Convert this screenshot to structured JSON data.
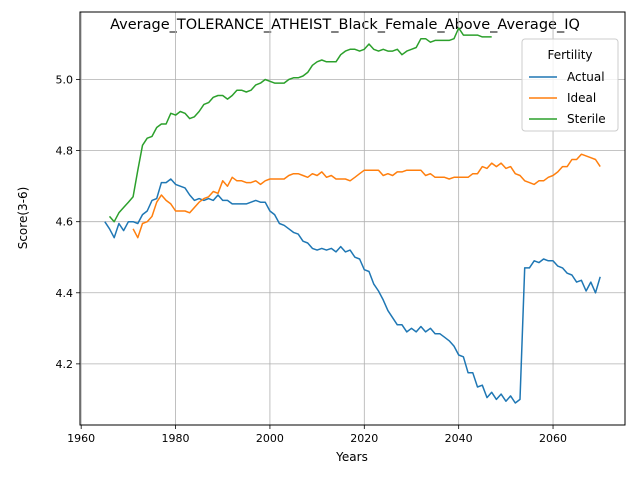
{
  "chart_data": {
    "type": "line",
    "title": "Average_TOLERANCE_ATHEIST_Black_Female_Above_Average_IQ",
    "xlabel": "Years",
    "ylabel": "Score(3-6)",
    "xlim": [
      1959.75,
      2075.25
    ],
    "ylim": [
      4.028,
      5.19
    ],
    "xticks": [
      1960,
      1980,
      2000,
      2020,
      2040,
      2060
    ],
    "yticks": [
      4.2,
      4.4,
      4.6,
      4.8,
      5.0
    ],
    "xtick_labels": [
      "1960",
      "1980",
      "2000",
      "2020",
      "2040",
      "2060"
    ],
    "ytick_labels": [
      "4.2",
      "4.4",
      "4.6",
      "4.8",
      "5.0"
    ],
    "grid": true,
    "legend": {
      "title": "Fertility",
      "placement": "top-right"
    },
    "series": [
      {
        "name": "Actual",
        "color": "#1f77b4",
        "x": [
          1965,
          1966,
          1967,
          1968,
          1969,
          1970,
          1971,
          1972,
          1973,
          1974,
          1975,
          1976,
          1977,
          1978,
          1979,
          1980,
          1981,
          1982,
          1983,
          1984,
          1985,
          1986,
          1987,
          1988,
          1989,
          1990,
          1991,
          1992,
          1993,
          1994,
          1995,
          1996,
          1997,
          1998,
          1999,
          2000,
          2001,
          2002,
          2003,
          2004,
          2005,
          2006,
          2007,
          2008,
          2009,
          2010,
          2011,
          2012,
          2013,
          2014,
          2015,
          2016,
          2017,
          2018,
          2019,
          2020,
          2021,
          2022,
          2023,
          2024,
          2025,
          2026,
          2027,
          2028,
          2029,
          2030,
          2031,
          2032,
          2033,
          2034,
          2035,
          2036,
          2037,
          2038,
          2039,
          2040,
          2041,
          2042,
          2043,
          2044,
          2045,
          2046,
          2047,
          2048,
          2049,
          2050,
          2051,
          2052,
          2053,
          2054,
          2055,
          2056,
          2057,
          2058,
          2059,
          2060,
          2061,
          2062,
          2063,
          2064,
          2065,
          2066,
          2067,
          2068,
          2069,
          2070
        ],
        "values": [
          4.6,
          4.58,
          4.555,
          4.595,
          4.575,
          4.6,
          4.6,
          4.595,
          4.62,
          4.63,
          4.66,
          4.665,
          4.71,
          4.71,
          4.72,
          4.705,
          4.7,
          4.695,
          4.675,
          4.66,
          4.665,
          4.66,
          4.665,
          4.66,
          4.675,
          4.66,
          4.66,
          4.65,
          4.65,
          4.65,
          4.65,
          4.655,
          4.66,
          4.655,
          4.655,
          4.63,
          4.62,
          4.595,
          4.59,
          4.58,
          4.57,
          4.565,
          4.545,
          4.54,
          4.525,
          4.52,
          4.525,
          4.52,
          4.525,
          4.515,
          4.53,
          4.515,
          4.52,
          4.5,
          4.495,
          4.465,
          4.46,
          4.425,
          4.405,
          4.38,
          4.35,
          4.33,
          4.31,
          4.31,
          4.29,
          4.3,
          4.29,
          4.305,
          4.29,
          4.3,
          4.285,
          4.285,
          4.275,
          4.265,
          4.25,
          4.225,
          4.22,
          4.175,
          4.175,
          4.135,
          4.14,
          4.105,
          4.12,
          4.1,
          4.115,
          4.095,
          4.11,
          4.09,
          4.1,
          4.47,
          4.47,
          4.49,
          4.485,
          4.495,
          4.49,
          4.49,
          4.475,
          4.47,
          4.455,
          4.45,
          4.43,
          4.435,
          4.405,
          4.43,
          4.4,
          4.445
        ]
      },
      {
        "name": "Ideal",
        "color": "#ff7f0e",
        "x": [
          1971,
          1972,
          1973,
          1974,
          1975,
          1976,
          1977,
          1978,
          1979,
          1980,
          1981,
          1982,
          1983,
          1984,
          1985,
          1986,
          1987,
          1988,
          1989,
          1990,
          1991,
          1992,
          1993,
          1994,
          1995,
          1996,
          1997,
          1998,
          1999,
          2000,
          2001,
          2002,
          2003,
          2004,
          2005,
          2006,
          2007,
          2008,
          2009,
          2010,
          2011,
          2012,
          2013,
          2014,
          2015,
          2016,
          2017,
          2018,
          2019,
          2020,
          2021,
          2022,
          2023,
          2024,
          2025,
          2026,
          2027,
          2028,
          2029,
          2030,
          2031,
          2032,
          2033,
          2034,
          2035,
          2036,
          2037,
          2038,
          2039,
          2040,
          2041,
          2042,
          2043,
          2044,
          2045,
          2046,
          2047,
          2048,
          2049,
          2050,
          2051,
          2052,
          2053,
          2054,
          2055,
          2056,
          2057,
          2058,
          2059,
          2060,
          2061,
          2062,
          2063,
          2064,
          2065,
          2066,
          2067,
          2068,
          2069,
          2070
        ],
        "values": [
          4.58,
          4.555,
          4.595,
          4.6,
          4.615,
          4.655,
          4.675,
          4.66,
          4.65,
          4.63,
          4.63,
          4.63,
          4.625,
          4.64,
          4.655,
          4.665,
          4.67,
          4.685,
          4.68,
          4.715,
          4.7,
          4.725,
          4.715,
          4.715,
          4.71,
          4.71,
          4.715,
          4.705,
          4.715,
          4.72,
          4.72,
          4.72,
          4.72,
          4.73,
          4.735,
          4.735,
          4.73,
          4.725,
          4.735,
          4.73,
          4.74,
          4.725,
          4.73,
          4.72,
          4.72,
          4.72,
          4.715,
          4.725,
          4.735,
          4.745,
          4.745,
          4.745,
          4.745,
          4.73,
          4.735,
          4.73,
          4.74,
          4.74,
          4.745,
          4.745,
          4.745,
          4.745,
          4.73,
          4.735,
          4.725,
          4.725,
          4.725,
          4.72,
          4.725,
          4.725,
          4.725,
          4.725,
          4.735,
          4.735,
          4.755,
          4.75,
          4.765,
          4.755,
          4.765,
          4.75,
          4.755,
          4.735,
          4.73,
          4.715,
          4.71,
          4.705,
          4.715,
          4.715,
          4.725,
          4.73,
          4.74,
          4.755,
          4.755,
          4.775,
          4.775,
          4.79,
          4.785,
          4.78,
          4.775,
          4.755
        ]
      },
      {
        "name": "Sterile",
        "color": "#2ca02c",
        "x": [
          1966,
          1967,
          1968,
          1969,
          1970,
          1971,
          1972,
          1973,
          1974,
          1975,
          1976,
          1977,
          1978,
          1979,
          1980,
          1981,
          1982,
          1983,
          1984,
          1985,
          1986,
          1987,
          1988,
          1989,
          1990,
          1991,
          1992,
          1993,
          1994,
          1995,
          1996,
          1997,
          1998,
          1999,
          2000,
          2001,
          2002,
          2003,
          2004,
          2005,
          2006,
          2007,
          2008,
          2009,
          2010,
          2011,
          2012,
          2013,
          2014,
          2015,
          2016,
          2017,
          2018,
          2019,
          2020,
          2021,
          2022,
          2023,
          2024,
          2025,
          2026,
          2027,
          2028,
          2029,
          2030,
          2031,
          2032,
          2033,
          2034,
          2035,
          2036,
          2037,
          2038,
          2039,
          2040,
          2041,
          2042,
          2043,
          2044,
          2045,
          2046,
          2047
        ],
        "values": [
          4.615,
          4.6,
          4.625,
          4.64,
          4.655,
          4.67,
          4.745,
          4.815,
          4.835,
          4.84,
          4.865,
          4.875,
          4.875,
          4.905,
          4.9,
          4.91,
          4.905,
          4.89,
          4.895,
          4.91,
          4.93,
          4.935,
          4.95,
          4.955,
          4.955,
          4.945,
          4.955,
          4.97,
          4.97,
          4.965,
          4.97,
          4.985,
          4.99,
          5.0,
          4.995,
          4.99,
          4.99,
          4.99,
          5.0,
          5.005,
          5.005,
          5.01,
          5.02,
          5.04,
          5.05,
          5.055,
          5.05,
          5.05,
          5.05,
          5.07,
          5.08,
          5.085,
          5.085,
          5.08,
          5.085,
          5.1,
          5.085,
          5.08,
          5.085,
          5.08,
          5.08,
          5.085,
          5.07,
          5.08,
          5.085,
          5.09,
          5.115,
          5.115,
          5.105,
          5.11,
          5.11,
          5.11,
          5.11,
          5.115,
          5.145,
          5.125,
          5.125,
          5.125,
          5.125,
          5.12,
          5.12,
          5.12
        ]
      }
    ]
  }
}
